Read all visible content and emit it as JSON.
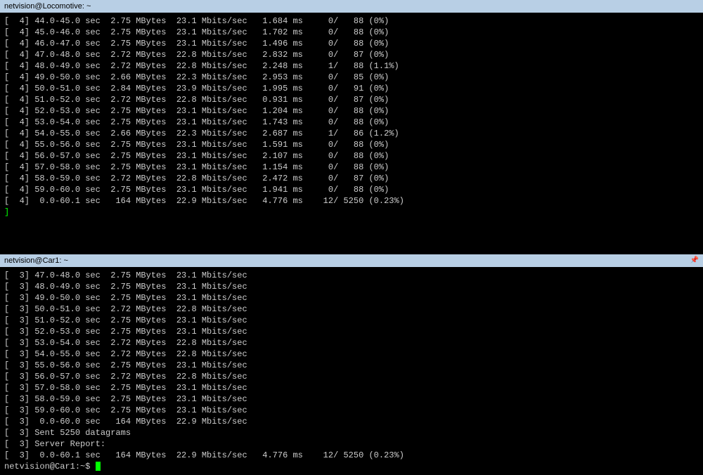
{
  "colors": {
    "bg": "#000000",
    "text": "#cccccc",
    "title_bg": "#b8cfe5",
    "title_text": "#000000",
    "bracket": "#00ff00",
    "cursor": "#00ff00"
  },
  "pane1": {
    "title": "netvision@Locomotive: ~",
    "stream_id": "4",
    "rows": [
      {
        "interval": "44.0-45.0",
        "unit": "sec",
        "transfer": "2.75",
        "tunit": "MBytes",
        "bandwidth": "23.1",
        "bunit": "Mbits/sec",
        "jitter": "1.684",
        "junit": "ms",
        "lost": "0",
        "total": "88",
        "pct": "(0%)"
      },
      {
        "interval": "45.0-46.0",
        "unit": "sec",
        "transfer": "2.75",
        "tunit": "MBytes",
        "bandwidth": "23.1",
        "bunit": "Mbits/sec",
        "jitter": "1.702",
        "junit": "ms",
        "lost": "0",
        "total": "88",
        "pct": "(0%)"
      },
      {
        "interval": "46.0-47.0",
        "unit": "sec",
        "transfer": "2.75",
        "tunit": "MBytes",
        "bandwidth": "23.1",
        "bunit": "Mbits/sec",
        "jitter": "1.496",
        "junit": "ms",
        "lost": "0",
        "total": "88",
        "pct": "(0%)"
      },
      {
        "interval": "47.0-48.0",
        "unit": "sec",
        "transfer": "2.72",
        "tunit": "MBytes",
        "bandwidth": "22.8",
        "bunit": "Mbits/sec",
        "jitter": "2.832",
        "junit": "ms",
        "lost": "0",
        "total": "87",
        "pct": "(0%)"
      },
      {
        "interval": "48.0-49.0",
        "unit": "sec",
        "transfer": "2.72",
        "tunit": "MBytes",
        "bandwidth": "22.8",
        "bunit": "Mbits/sec",
        "jitter": "2.248",
        "junit": "ms",
        "lost": "1",
        "total": "88",
        "pct": "(1.1%)"
      },
      {
        "interval": "49.0-50.0",
        "unit": "sec",
        "transfer": "2.66",
        "tunit": "MBytes",
        "bandwidth": "22.3",
        "bunit": "Mbits/sec",
        "jitter": "2.953",
        "junit": "ms",
        "lost": "0",
        "total": "85",
        "pct": "(0%)"
      },
      {
        "interval": "50.0-51.0",
        "unit": "sec",
        "transfer": "2.84",
        "tunit": "MBytes",
        "bandwidth": "23.9",
        "bunit": "Mbits/sec",
        "jitter": "1.995",
        "junit": "ms",
        "lost": "0",
        "total": "91",
        "pct": "(0%)"
      },
      {
        "interval": "51.0-52.0",
        "unit": "sec",
        "transfer": "2.72",
        "tunit": "MBytes",
        "bandwidth": "22.8",
        "bunit": "Mbits/sec",
        "jitter": "0.931",
        "junit": "ms",
        "lost": "0",
        "total": "87",
        "pct": "(0%)"
      },
      {
        "interval": "52.0-53.0",
        "unit": "sec",
        "transfer": "2.75",
        "tunit": "MBytes",
        "bandwidth": "23.1",
        "bunit": "Mbits/sec",
        "jitter": "1.204",
        "junit": "ms",
        "lost": "0",
        "total": "88",
        "pct": "(0%)"
      },
      {
        "interval": "53.0-54.0",
        "unit": "sec",
        "transfer": "2.75",
        "tunit": "MBytes",
        "bandwidth": "23.1",
        "bunit": "Mbits/sec",
        "jitter": "1.743",
        "junit": "ms",
        "lost": "0",
        "total": "88",
        "pct": "(0%)"
      },
      {
        "interval": "54.0-55.0",
        "unit": "sec",
        "transfer": "2.66",
        "tunit": "MBytes",
        "bandwidth": "22.3",
        "bunit": "Mbits/sec",
        "jitter": "2.687",
        "junit": "ms",
        "lost": "1",
        "total": "86",
        "pct": "(1.2%)"
      },
      {
        "interval": "55.0-56.0",
        "unit": "sec",
        "transfer": "2.75",
        "tunit": "MBytes",
        "bandwidth": "23.1",
        "bunit": "Mbits/sec",
        "jitter": "1.591",
        "junit": "ms",
        "lost": "0",
        "total": "88",
        "pct": "(0%)"
      },
      {
        "interval": "56.0-57.0",
        "unit": "sec",
        "transfer": "2.75",
        "tunit": "MBytes",
        "bandwidth": "23.1",
        "bunit": "Mbits/sec",
        "jitter": "2.107",
        "junit": "ms",
        "lost": "0",
        "total": "88",
        "pct": "(0%)"
      },
      {
        "interval": "57.0-58.0",
        "unit": "sec",
        "transfer": "2.75",
        "tunit": "MBytes",
        "bandwidth": "23.1",
        "bunit": "Mbits/sec",
        "jitter": "1.154",
        "junit": "ms",
        "lost": "0",
        "total": "88",
        "pct": "(0%)"
      },
      {
        "interval": "58.0-59.0",
        "unit": "sec",
        "transfer": "2.72",
        "tunit": "MBytes",
        "bandwidth": "22.8",
        "bunit": "Mbits/sec",
        "jitter": "2.472",
        "junit": "ms",
        "lost": "0",
        "total": "87",
        "pct": "(0%)"
      },
      {
        "interval": "59.0-60.0",
        "unit": "sec",
        "transfer": "2.75",
        "tunit": "MBytes",
        "bandwidth": "23.1",
        "bunit": "Mbits/sec",
        "jitter": "1.941",
        "junit": "ms",
        "lost": "0",
        "total": "88",
        "pct": "(0%)"
      },
      {
        "interval": " 0.0-60.1",
        "unit": "sec",
        "transfer": " 164",
        "tunit": "MBytes",
        "bandwidth": "22.9",
        "bunit": "Mbits/sec",
        "jitter": "4.776",
        "junit": "ms",
        "lost": "12",
        "total": "5250",
        "pct": "(0.23%)",
        "summary": true
      }
    ],
    "end_bracket": "]"
  },
  "pane2": {
    "title": "netvision@Car1: ~",
    "stream_id": "3",
    "rows": [
      {
        "interval": "47.0-48.0",
        "unit": "sec",
        "transfer": "2.75",
        "tunit": "MBytes",
        "bandwidth": "23.1",
        "bunit": "Mbits/sec"
      },
      {
        "interval": "48.0-49.0",
        "unit": "sec",
        "transfer": "2.75",
        "tunit": "MBytes",
        "bandwidth": "23.1",
        "bunit": "Mbits/sec"
      },
      {
        "interval": "49.0-50.0",
        "unit": "sec",
        "transfer": "2.75",
        "tunit": "MBytes",
        "bandwidth": "23.1",
        "bunit": "Mbits/sec"
      },
      {
        "interval": "50.0-51.0",
        "unit": "sec",
        "transfer": "2.72",
        "tunit": "MBytes",
        "bandwidth": "22.8",
        "bunit": "Mbits/sec"
      },
      {
        "interval": "51.0-52.0",
        "unit": "sec",
        "transfer": "2.75",
        "tunit": "MBytes",
        "bandwidth": "23.1",
        "bunit": "Mbits/sec"
      },
      {
        "interval": "52.0-53.0",
        "unit": "sec",
        "transfer": "2.75",
        "tunit": "MBytes",
        "bandwidth": "23.1",
        "bunit": "Mbits/sec"
      },
      {
        "interval": "53.0-54.0",
        "unit": "sec",
        "transfer": "2.72",
        "tunit": "MBytes",
        "bandwidth": "22.8",
        "bunit": "Mbits/sec"
      },
      {
        "interval": "54.0-55.0",
        "unit": "sec",
        "transfer": "2.72",
        "tunit": "MBytes",
        "bandwidth": "22.8",
        "bunit": "Mbits/sec"
      },
      {
        "interval": "55.0-56.0",
        "unit": "sec",
        "transfer": "2.75",
        "tunit": "MBytes",
        "bandwidth": "23.1",
        "bunit": "Mbits/sec"
      },
      {
        "interval": "56.0-57.0",
        "unit": "sec",
        "transfer": "2.72",
        "tunit": "MBytes",
        "bandwidth": "22.8",
        "bunit": "Mbits/sec"
      },
      {
        "interval": "57.0-58.0",
        "unit": "sec",
        "transfer": "2.75",
        "tunit": "MBytes",
        "bandwidth": "23.1",
        "bunit": "Mbits/sec"
      },
      {
        "interval": "58.0-59.0",
        "unit": "sec",
        "transfer": "2.75",
        "tunit": "MBytes",
        "bandwidth": "23.1",
        "bunit": "Mbits/sec"
      },
      {
        "interval": "59.0-60.0",
        "unit": "sec",
        "transfer": "2.75",
        "tunit": "MBytes",
        "bandwidth": "23.1",
        "bunit": "Mbits/sec"
      },
      {
        "interval": " 0.0-60.0",
        "unit": "sec",
        "transfer": " 164",
        "tunit": "MBytes",
        "bandwidth": "22.9",
        "bunit": "Mbits/sec"
      }
    ],
    "sent_line": "Sent 5250 datagrams",
    "report_line": "Server Report:",
    "summary": {
      "interval": " 0.0-60.1",
      "unit": "sec",
      "transfer": " 164",
      "tunit": "MBytes",
      "bandwidth": "22.9",
      "bunit": "Mbits/sec",
      "jitter": "4.776",
      "junit": "ms",
      "lost": "12",
      "total": "5250",
      "pct": "(0.23%)"
    },
    "prompt": "netvision@Car1:~$ "
  }
}
